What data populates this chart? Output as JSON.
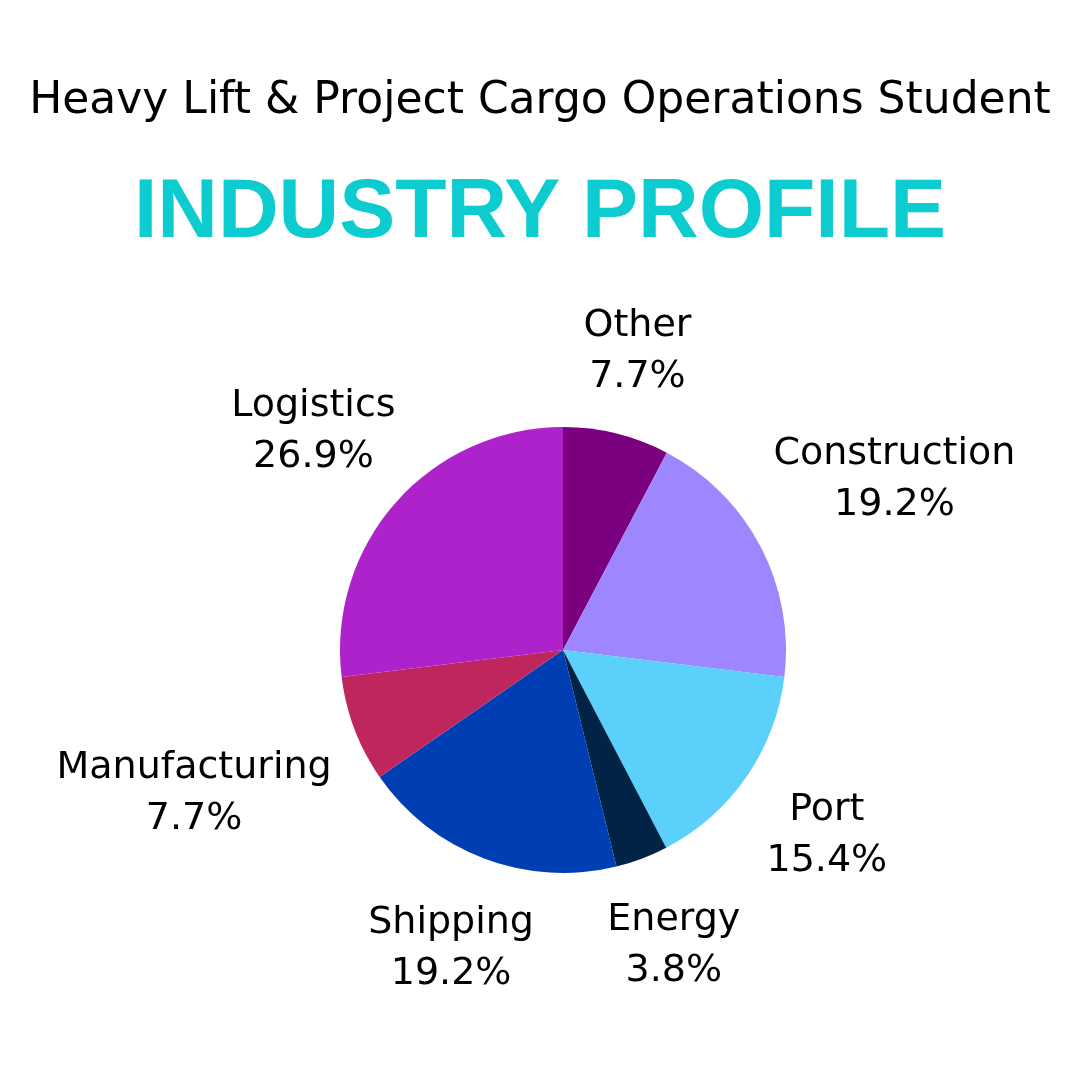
{
  "chart_data": {
    "type": "pie",
    "title": "Heavy Lift & Project Cargo Operations Student",
    "subtitle": "INDUSTRY PROFILE",
    "categories": [
      "Other",
      "Construction",
      "Port",
      "Energy",
      "Shipping",
      "Manufacturing",
      "Logistics"
    ],
    "values": [
      7.7,
      19.2,
      15.4,
      3.8,
      19.2,
      7.7,
      26.9
    ],
    "value_labels": [
      "7.7%",
      "19.2%",
      "15.4%",
      "3.8%",
      "19.2%",
      "7.7%",
      "26.9%"
    ],
    "colors": [
      "#7a0080",
      "#9d86ff",
      "#5bd0fb",
      "#012346",
      "#003fb3",
      "#c0265e",
      "#ae22cb"
    ]
  }
}
